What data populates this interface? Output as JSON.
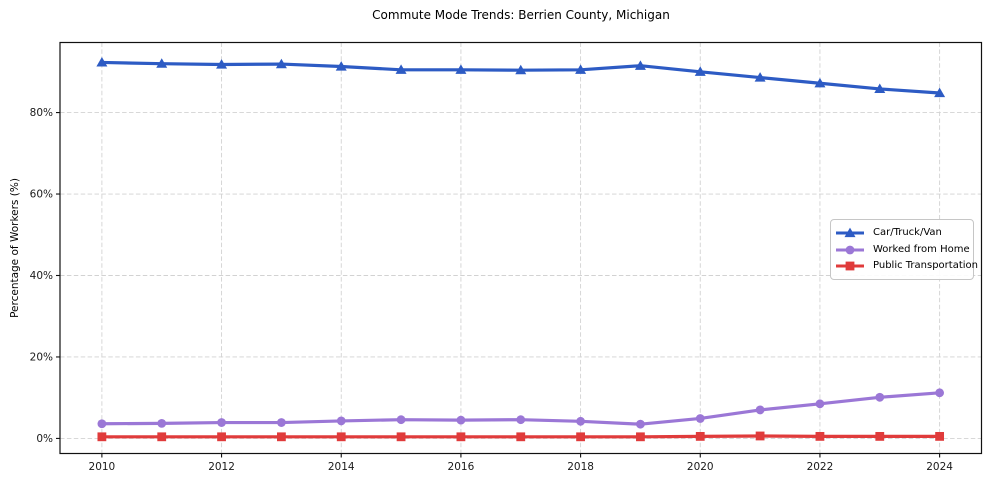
{
  "chart_data": {
    "type": "line",
    "title": "Commute Mode Trends: Berrien County, Michigan",
    "xlabel": "",
    "ylabel": "Percentage of Workers (%)",
    "x": [
      2010,
      2011,
      2012,
      2013,
      2014,
      2015,
      2016,
      2017,
      2018,
      2019,
      2020,
      2021,
      2022,
      2023,
      2024
    ],
    "x_ticks": [
      2010,
      2012,
      2014,
      2016,
      2018,
      2020,
      2022,
      2024
    ],
    "x_tick_labels": [
      "2010",
      "2012",
      "2014",
      "2016",
      "2018",
      "2020",
      "2022",
      "2024"
    ],
    "y_ticks": [
      0,
      20,
      40,
      60,
      80
    ],
    "y_tick_labels": [
      "0%",
      "20%",
      "40%",
      "60%",
      "80%"
    ],
    "xlim": [
      2009.3,
      2024.7
    ],
    "ylim": [
      -3.7,
      97.2
    ],
    "grid": true,
    "grid_style": "dashed",
    "legend_position": "center right",
    "series": [
      {
        "name": "Car/Truck/Van",
        "marker": "triangle",
        "color": "#2d5bc4",
        "values": [
          92.3,
          92.0,
          91.8,
          91.9,
          91.3,
          90.5,
          90.5,
          90.4,
          90.5,
          91.5,
          90.0,
          88.6,
          87.2,
          85.8,
          84.8
        ]
      },
      {
        "name": "Worked from Home",
        "marker": "circle",
        "color": "#9b77d6",
        "values": [
          3.6,
          3.7,
          3.9,
          3.9,
          4.3,
          4.6,
          4.5,
          4.6,
          4.2,
          3.5,
          4.9,
          7.0,
          8.5,
          10.1,
          11.2
        ]
      },
      {
        "name": "Public Transportation",
        "marker": "square",
        "color": "#e03b3b",
        "values": [
          0.4,
          0.4,
          0.4,
          0.4,
          0.4,
          0.4,
          0.4,
          0.4,
          0.4,
          0.4,
          0.5,
          0.6,
          0.5,
          0.5,
          0.5
        ]
      }
    ]
  }
}
